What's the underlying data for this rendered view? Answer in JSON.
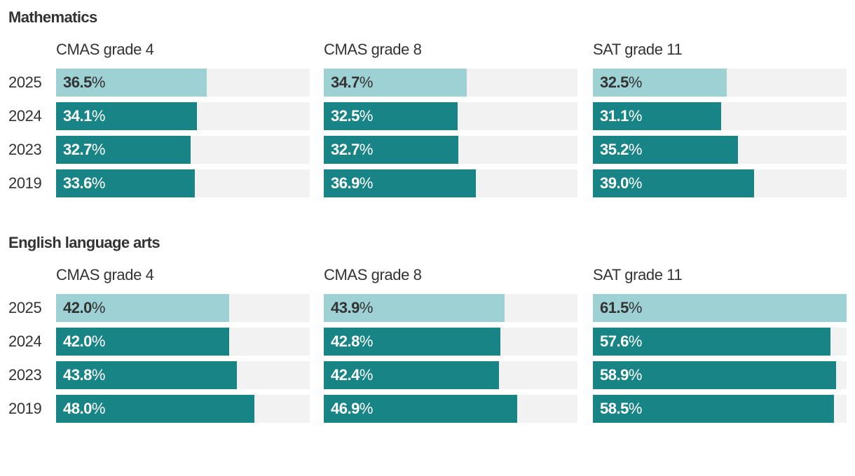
{
  "colors": {
    "current": "#9dd1d4",
    "past": "#198486",
    "track": "#f2f2f2",
    "label_dark": "#333333",
    "label_light": "#ffffff"
  },
  "chart_data": [
    {
      "type": "bar",
      "title": "Mathematics",
      "columns": [
        "CMAS grade 4",
        "CMAS grade 8",
        "SAT grade 11"
      ],
      "categories": [
        "2025",
        "2024",
        "2023",
        "2019"
      ],
      "series": [
        {
          "name": "CMAS grade 4",
          "values": [
            36.5,
            34.1,
            32.7,
            33.6
          ]
        },
        {
          "name": "CMAS grade 8",
          "values": [
            34.7,
            32.5,
            32.7,
            36.9
          ]
        },
        {
          "name": "SAT grade 11",
          "values": [
            32.5,
            31.1,
            35.2,
            39.0
          ]
        }
      ],
      "highlight_category": "2025",
      "value_suffix": "%",
      "xlim": [
        0,
        61.5
      ]
    },
    {
      "type": "bar",
      "title": "English language arts",
      "columns": [
        "CMAS grade 4",
        "CMAS grade 8",
        "SAT grade 11"
      ],
      "categories": [
        "2025",
        "2024",
        "2023",
        "2019"
      ],
      "series": [
        {
          "name": "CMAS grade 4",
          "values": [
            42.0,
            42.0,
            43.8,
            48.0
          ]
        },
        {
          "name": "CMAS grade 8",
          "values": [
            43.9,
            42.8,
            42.4,
            46.9
          ]
        },
        {
          "name": "SAT grade 11",
          "values": [
            61.5,
            57.6,
            58.9,
            58.5
          ]
        }
      ],
      "highlight_category": "2025",
      "value_suffix": "%",
      "xlim": [
        0,
        61.5
      ]
    }
  ]
}
